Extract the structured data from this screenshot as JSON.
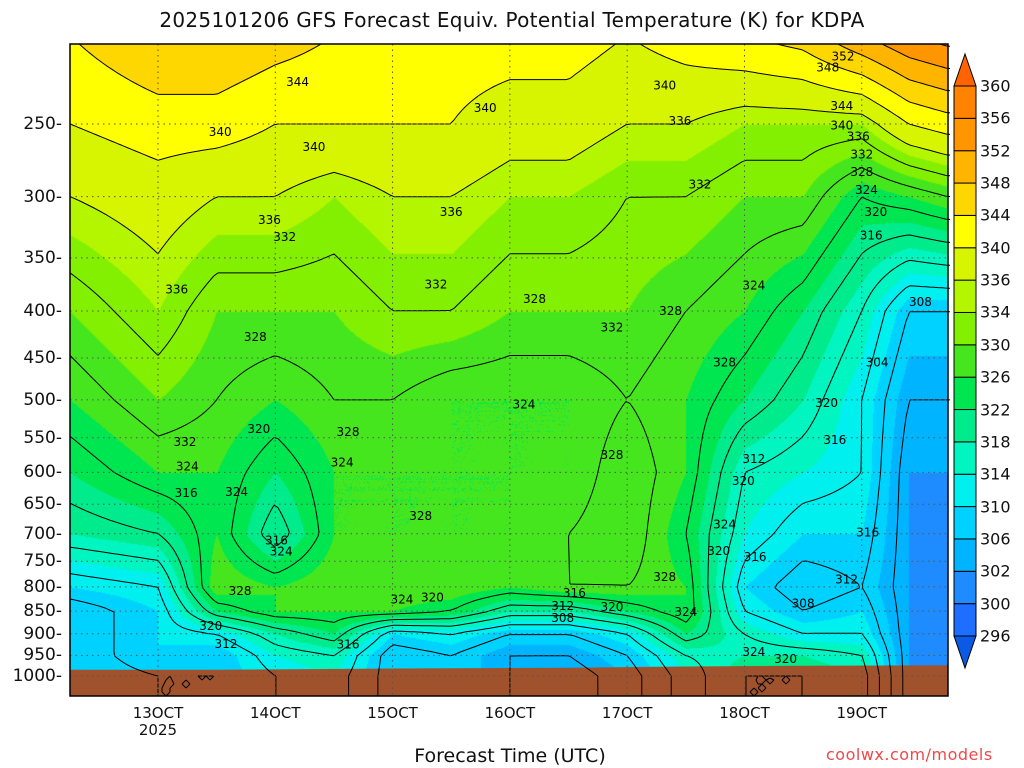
{
  "chart_data": {
    "type": "contour",
    "title": "2025101206 GFS Forecast Equiv. Potential Temperature (K) for KDPA",
    "xlabel": "Forecast Time (UTC)",
    "ylabel": "",
    "credit": "coolwx.com/models",
    "xlim_day_oct": [
      12.25,
      19.73
    ],
    "ylim_hpa": [
      1052,
      205
    ],
    "y_scale": "log",
    "grid": "dotted",
    "x_ticks": [
      {
        "day": 13,
        "label": "13OCT",
        "sublabel": "2025"
      },
      {
        "day": 14,
        "label": "14OCT"
      },
      {
        "day": 15,
        "label": "15OCT"
      },
      {
        "day": 16,
        "label": "16OCT"
      },
      {
        "day": 17,
        "label": "17OCT"
      },
      {
        "day": 18,
        "label": "18OCT"
      },
      {
        "day": 19,
        "label": "19OCT"
      }
    ],
    "y_ticks": [
      "250",
      "300",
      "350",
      "400",
      "450",
      "500",
      "550",
      "600",
      "650",
      "700",
      "750",
      "800",
      "850",
      "900",
      "950",
      "1000"
    ],
    "contour_interval": 4,
    "colorbar": {
      "boundaries": [
        296,
        300,
        302,
        306,
        310,
        314,
        318,
        322,
        326,
        330,
        334,
        336,
        340,
        344,
        348,
        352,
        356,
        360
      ],
      "colors": [
        "#1e6eff",
        "#1e8cff",
        "#00b4ff",
        "#00d2ff",
        "#00f0f0",
        "#00f5c0",
        "#00eb8c",
        "#00e650",
        "#46e61e",
        "#82f000",
        "#b4f500",
        "#d7f500",
        "#ffff00",
        "#ffd700",
        "#ffb400",
        "#ff9600",
        "#ff8200"
      ],
      "under_color": "#0a5ae6",
      "over_color": "#ff6400",
      "labels": [
        "360",
        "356",
        "352",
        "348",
        "344",
        "340",
        "336",
        "334",
        "330",
        "326",
        "322",
        "318",
        "314",
        "310",
        "306",
        "302",
        "300",
        "296"
      ]
    },
    "ground_color": "#a0522d",
    "surface_pressure": {
      "day": [
        12.25,
        13.5,
        15,
        16.5,
        17.5,
        18.5,
        19.73
      ],
      "hpa": [
        985,
        985,
        982,
        980,
        977,
        975,
        974
      ]
    },
    "field": {
      "day": [
        12.25,
        13,
        13.5,
        14,
        14.5,
        15,
        15.5,
        16,
        16.5,
        17,
        17.5,
        18,
        18.5,
        19,
        19.4,
        19.73
      ],
      "hpa": [
        200,
        250,
        300,
        400,
        500,
        600,
        700,
        800,
        850,
        900,
        950,
        1000,
        1060
      ],
      "theta_e": [
        [
          344,
          348,
          348,
          346,
          344,
          344,
          342,
          342,
          342,
          340,
          342,
          344,
          346,
          352,
          356,
          358
        ],
        [
          340,
          342,
          342,
          340,
          340,
          340,
          340,
          338,
          338,
          336,
          336,
          334,
          334,
          334,
          340,
          342
        ],
        [
          336,
          338,
          336,
          336,
          334,
          336,
          336,
          334,
          334,
          332,
          332,
          330,
          330,
          324,
          326,
          328
        ],
        [
          330,
          334,
          330,
          330,
          330,
          332,
          332,
          330,
          330,
          330,
          328,
          326,
          322,
          316,
          308,
          308
        ],
        [
          326,
          330,
          328,
          326,
          328,
          328,
          326,
          326,
          326,
          328,
          326,
          322,
          318,
          312,
          304,
          304
        ],
        [
          322,
          326,
          326,
          322,
          326,
          326,
          326,
          326,
          326,
          330,
          326,
          316,
          314,
          312,
          302,
          302
        ],
        [
          318,
          320,
          326,
          318,
          326,
          326,
          326,
          326,
          328,
          330,
          324,
          314,
          310,
          310,
          302,
          300
        ],
        [
          310,
          312,
          328,
          326,
          328,
          328,
          328,
          326,
          328,
          328,
          326,
          310,
          306,
          308,
          302,
          300
        ],
        [
          306,
          310,
          322,
          326,
          326,
          326,
          324,
          318,
          318,
          322,
          326,
          312,
          308,
          310,
          302,
          300
        ],
        [
          306,
          310,
          312,
          318,
          322,
          310,
          312,
          308,
          308,
          312,
          322,
          316,
          312,
          312,
          302,
          300
        ],
        [
          306,
          310,
          308,
          314,
          316,
          306,
          308,
          304,
          304,
          308,
          316,
          318,
          318,
          316,
          302,
          300
        ],
        [
          306,
          308,
          308,
          312,
          314,
          306,
          308,
          304,
          302,
          306,
          314,
          320,
          320,
          318,
          302,
          300
        ],
        [
          306,
          308,
          308,
          312,
          314,
          306,
          308,
          304,
          302,
          306,
          314,
          320,
          320,
          318,
          302,
          300
        ]
      ]
    },
    "contour_labels": [
      {
        "v": "344",
        "day": 14.19,
        "hpa": 225
      },
      {
        "v": "340",
        "day": 13.53,
        "hpa": 255
      },
      {
        "v": "340",
        "day": 14.33,
        "hpa": 265
      },
      {
        "v": "340",
        "day": 15.79,
        "hpa": 240
      },
      {
        "v": "340",
        "day": 17.32,
        "hpa": 227
      },
      {
        "v": "336",
        "day": 17.45,
        "hpa": 248
      },
      {
        "v": "352",
        "day": 18.84,
        "hpa": 211
      },
      {
        "v": "348",
        "day": 18.71,
        "hpa": 217
      },
      {
        "v": "344",
        "day": 18.83,
        "hpa": 239
      },
      {
        "v": "340",
        "day": 18.83,
        "hpa": 251
      },
      {
        "v": "336",
        "day": 18.97,
        "hpa": 258
      },
      {
        "v": "332",
        "day": 19.0,
        "hpa": 270
      },
      {
        "v": "328",
        "day": 19.0,
        "hpa": 282
      },
      {
        "v": "324",
        "day": 19.04,
        "hpa": 295
      },
      {
        "v": "320",
        "day": 19.12,
        "hpa": 312
      },
      {
        "v": "316",
        "day": 19.08,
        "hpa": 331
      },
      {
        "v": "336",
        "day": 13.95,
        "hpa": 318
      },
      {
        "v": "332",
        "day": 14.08,
        "hpa": 332
      },
      {
        "v": "336",
        "day": 15.5,
        "hpa": 312
      },
      {
        "v": "332",
        "day": 17.62,
        "hpa": 291
      },
      {
        "v": "332",
        "day": 15.37,
        "hpa": 374
      },
      {
        "v": "328",
        "day": 16.21,
        "hpa": 388
      },
      {
        "v": "332",
        "day": 16.87,
        "hpa": 417
      },
      {
        "v": "328",
        "day": 17.37,
        "hpa": 400
      },
      {
        "v": "324",
        "day": 18.08,
        "hpa": 375
      },
      {
        "v": "308",
        "day": 19.5,
        "hpa": 391
      },
      {
        "v": "336",
        "day": 13.16,
        "hpa": 379
      },
      {
        "v": "328",
        "day": 13.83,
        "hpa": 427
      },
      {
        "v": "328",
        "day": 17.83,
        "hpa": 455
      },
      {
        "v": "304",
        "day": 19.13,
        "hpa": 455
      },
      {
        "v": "324",
        "day": 16.12,
        "hpa": 506
      },
      {
        "v": "320",
        "day": 18.7,
        "hpa": 504
      },
      {
        "v": "316",
        "day": 18.77,
        "hpa": 553
      },
      {
        "v": "320",
        "day": 13.86,
        "hpa": 538
      },
      {
        "v": "328",
        "day": 14.62,
        "hpa": 542
      },
      {
        "v": "332",
        "day": 13.23,
        "hpa": 556
      },
      {
        "v": "324",
        "day": 14.57,
        "hpa": 585
      },
      {
        "v": "324",
        "day": 13.25,
        "hpa": 591
      },
      {
        "v": "316",
        "day": 13.24,
        "hpa": 632
      },
      {
        "v": "324",
        "day": 13.67,
        "hpa": 630
      },
      {
        "v": "328",
        "day": 16.87,
        "hpa": 574
      },
      {
        "v": "312",
        "day": 18.08,
        "hpa": 580
      },
      {
        "v": "320",
        "day": 17.99,
        "hpa": 613
      },
      {
        "v": "328",
        "day": 15.24,
        "hpa": 669
      },
      {
        "v": "324",
        "day": 17.83,
        "hpa": 684
      },
      {
        "v": "316",
        "day": 14.01,
        "hpa": 712
      },
      {
        "v": "324",
        "day": 14.05,
        "hpa": 732
      },
      {
        "v": "320",
        "day": 17.78,
        "hpa": 731
      },
      {
        "v": "316",
        "day": 18.09,
        "hpa": 742
      },
      {
        "v": "316",
        "day": 19.05,
        "hpa": 698
      },
      {
        "v": "328",
        "day": 13.7,
        "hpa": 808
      },
      {
        "v": "328",
        "day": 17.32,
        "hpa": 780
      },
      {
        "v": "316",
        "day": 16.55,
        "hpa": 812
      },
      {
        "v": "324",
        "day": 15.08,
        "hpa": 826
      },
      {
        "v": "320",
        "day": 15.34,
        "hpa": 822
      },
      {
        "v": "312",
        "day": 16.45,
        "hpa": 839
      },
      {
        "v": "320",
        "day": 16.87,
        "hpa": 841
      },
      {
        "v": "324",
        "day": 17.5,
        "hpa": 852
      },
      {
        "v": "308",
        "day": 16.45,
        "hpa": 865
      },
      {
        "v": "312",
        "day": 18.87,
        "hpa": 785
      },
      {
        "v": "308",
        "day": 18.5,
        "hpa": 834
      },
      {
        "v": "320",
        "day": 13.45,
        "hpa": 882
      },
      {
        "v": "312",
        "day": 13.58,
        "hpa": 923
      },
      {
        "v": "316",
        "day": 14.62,
        "hpa": 925
      },
      {
        "v": "324",
        "day": 18.08,
        "hpa": 942
      },
      {
        "v": "320",
        "day": 18.35,
        "hpa": 959
      }
    ]
  }
}
